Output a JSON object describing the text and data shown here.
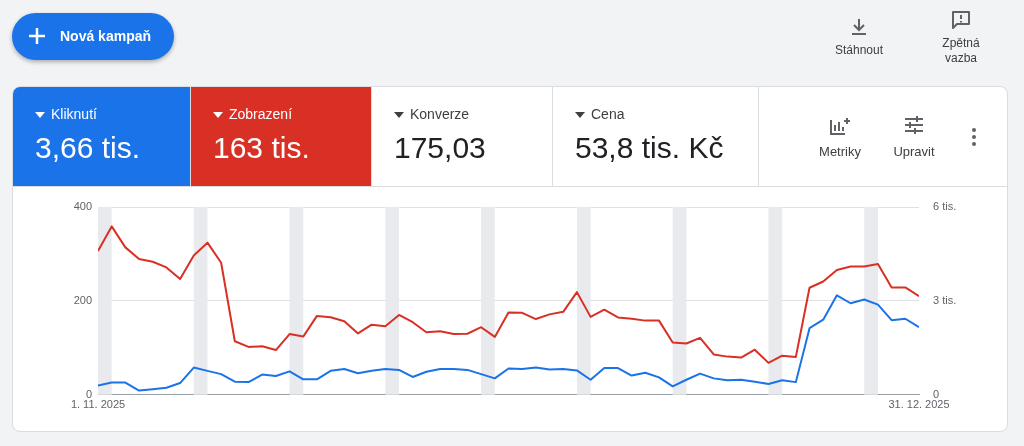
{
  "chart_data": {
    "type": "line",
    "x": [
      "2025-11-01",
      "2025-11-02",
      "2025-11-03",
      "2025-11-04",
      "2025-11-05",
      "2025-11-06",
      "2025-11-07",
      "2025-11-08",
      "2025-11-09",
      "2025-11-10",
      "2025-11-11",
      "2025-11-12",
      "2025-11-13",
      "2025-11-14",
      "2025-11-15",
      "2025-11-16",
      "2025-11-17",
      "2025-11-18",
      "2025-11-19",
      "2025-11-20",
      "2025-11-21",
      "2025-11-22",
      "2025-11-23",
      "2025-11-24",
      "2025-11-25",
      "2025-11-26",
      "2025-11-27",
      "2025-11-28",
      "2025-11-29",
      "2025-11-30",
      "2025-12-01",
      "2025-12-02",
      "2025-12-03",
      "2025-12-04",
      "2025-12-05",
      "2025-12-06",
      "2025-12-07",
      "2025-12-08",
      "2025-12-09",
      "2025-12-10",
      "2025-12-11",
      "2025-12-12",
      "2025-12-13",
      "2025-12-14",
      "2025-12-15",
      "2025-12-16",
      "2025-12-17",
      "2025-12-18",
      "2025-12-19",
      "2025-12-20",
      "2025-12-21",
      "2025-12-22",
      "2025-12-23",
      "2025-12-24",
      "2025-12-25",
      "2025-12-26",
      "2025-12-27",
      "2025-12-28",
      "2025-12-29",
      "2025-12-30",
      "2025-12-31"
    ],
    "series": [
      {
        "color": "#1a73e8",
        "values": [
          20,
          26,
          26,
          9,
          12,
          15,
          25,
          58,
          51,
          44,
          28,
          27,
          43,
          40,
          50,
          33,
          33,
          51,
          55,
          46,
          51,
          55,
          53,
          38,
          49,
          55,
          55,
          53,
          44,
          35,
          56,
          55,
          58,
          54,
          55,
          52,
          32,
          57,
          57,
          41,
          47,
          37,
          18,
          32,
          45,
          35,
          31,
          32,
          28,
          23,
          31,
          27,
          142,
          160,
          212,
          195,
          203,
          192,
          159,
          162,
          144
        ]
      },
      {
        "color": "#d93025",
        "axis": "y2",
        "values": [
          4.59,
          5.38,
          4.71,
          4.34,
          4.25,
          4.07,
          3.7,
          4.45,
          4.86,
          4.22,
          1.71,
          1.53,
          1.55,
          1.43,
          1.94,
          1.86,
          2.52,
          2.48,
          2.35,
          1.96,
          2.24,
          2.19,
          2.55,
          2.32,
          2.0,
          2.03,
          1.94,
          1.95,
          2.16,
          1.85,
          2.63,
          2.62,
          2.42,
          2.57,
          2.65,
          3.28,
          2.49,
          2.72,
          2.47,
          2.43,
          2.37,
          2.37,
          1.67,
          1.64,
          1.82,
          1.29,
          1.22,
          1.19,
          1.44,
          1.02,
          1.25,
          1.21,
          3.42,
          3.62,
          3.99,
          4.1,
          4.1,
          4.18,
          3.43,
          3.43,
          3.15
        ]
      }
    ],
    "xlim": [
      "2025-11-01",
      "2025-12-31"
    ],
    "xticks": [
      {
        "value": "2025-11-01",
        "label": "1. 11. 2025"
      },
      {
        "value": "2025-12-31",
        "label": "31. 12. 2025"
      }
    ],
    "ylim": [
      0,
      400
    ],
    "yticks": [
      0,
      200,
      400
    ],
    "y2lim": [
      0,
      6
    ],
    "y2ticks": [
      0,
      {
        "value": 3,
        "label": "3 tis."
      },
      {
        "value": 6,
        "label": "6 tis."
      }
    ],
    "bands": [
      {
        "axis": "x",
        "from": "2025-11-01",
        "to": "2025-11-02",
        "color": "#e8eaed"
      },
      {
        "axis": "x",
        "from": "2025-11-08",
        "to": "2025-11-09",
        "color": "#e8eaed"
      },
      {
        "axis": "x",
        "from": "2025-11-15",
        "to": "2025-11-16",
        "color": "#e8eaed"
      },
      {
        "axis": "x",
        "from": "2025-11-22",
        "to": "2025-11-23",
        "color": "#e8eaed"
      },
      {
        "axis": "x",
        "from": "2025-11-29",
        "to": "2025-11-30",
        "color": "#e8eaed"
      },
      {
        "axis": "x",
        "from": "2025-12-06",
        "to": "2025-12-07",
        "color": "#e8eaed"
      },
      {
        "axis": "x",
        "from": "2025-12-13",
        "to": "2025-12-14",
        "color": "#e8eaed"
      },
      {
        "axis": "x",
        "from": "2025-12-20",
        "to": "2025-12-21",
        "color": "#e8eaed"
      },
      {
        "axis": "x",
        "from": "2025-12-27",
        "to": "2025-12-28",
        "color": "#e8eaed"
      }
    ],
    "grid": "y",
    "marker": "none",
    "line_style": "solid",
    "annotations": [
      "Nová kampaň",
      "Stáhnout",
      "Zpětná vazba",
      "Kliknutí",
      "3,66 tis.",
      "Zobrazení",
      "163 tis.",
      "Konverze",
      "175,03",
      "Cena",
      "53,8 tis. Kč",
      "Metriky",
      "Upravit"
    ]
  }
}
